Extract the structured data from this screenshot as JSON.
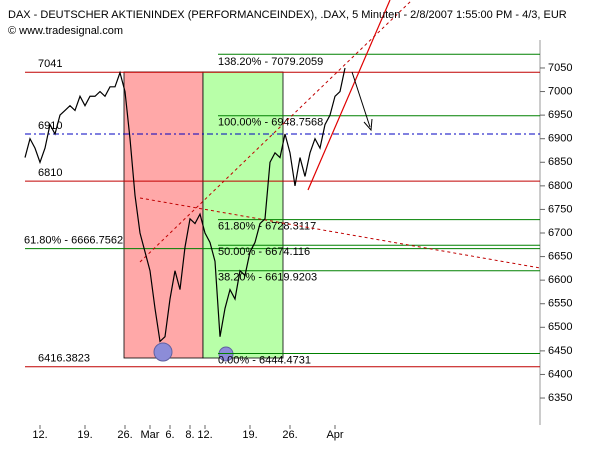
{
  "chart_data": {
    "type": "line",
    "title": "DAX  - DEUTSCHER AKTIENINDEX (PERFORMANCEINDEX), .DAX, 5 Minuten - 2/8/2007 1:55:00 PM - 4/3, EUR",
    "subtitle": "© www.tradesignal.com",
    "categories": [
      null,
      null,
      null,
      "12.",
      null,
      null,
      null,
      null,
      null,
      null,
      null,
      null,
      "19.",
      null,
      null,
      null,
      null,
      null,
      null,
      null,
      "26.",
      null,
      null,
      null,
      null,
      "Mar",
      null,
      null,
      null,
      "6.",
      null,
      null,
      null,
      "8.",
      null,
      null,
      "12.",
      null,
      null,
      null,
      null,
      null,
      null,
      null,
      null,
      "19.",
      null,
      null,
      null,
      null,
      null,
      null,
      null,
      "26.",
      null,
      null,
      null,
      null,
      null,
      null,
      null,
      null,
      "Apr",
      null,
      null
    ],
    "series": [
      {
        "name": "DAX",
        "color": "#000000",
        "values": [
          6860,
          6900,
          6880,
          6850,
          6880,
          6930,
          6910,
          6950,
          6960,
          6970,
          6960,
          6990,
          6970,
          6990,
          6990,
          7000,
          6990,
          7010,
          7010,
          7040,
          7000,
          6900,
          6780,
          6700,
          6660,
          6620,
          6540,
          6470,
          6480,
          6560,
          6620,
          6580,
          6670,
          6730,
          6720,
          6740,
          6700,
          6680,
          6640,
          6480,
          6540,
          6580,
          6560,
          6620,
          6610,
          6660,
          6680,
          6720,
          6730,
          6850,
          6870,
          6860,
          6910,
          6870,
          6800,
          6860,
          6820,
          6870,
          6900,
          6880,
          6930,
          6950,
          6990,
          7000,
          7050
        ]
      }
    ],
    "levels": [
      {
        "label": "7041",
        "value": 7041,
        "color": "#c00000"
      },
      {
        "label": "6910",
        "value": 6910,
        "color": "#0000c0"
      },
      {
        "label": "6810",
        "value": 6810,
        "color": "#c00000"
      },
      {
        "label": "6416.3823",
        "value": 6416.3823,
        "color": "#c00000"
      },
      {
        "label": "61.80% - 6666.7562",
        "value": 6666.7562,
        "color": "#008000"
      }
    ],
    "fib_levels": [
      {
        "label": "138.20% - 7079.2059",
        "value": 7079.2059
      },
      {
        "label": "100.00% - 6948.7568",
        "value": 6948.7568
      },
      {
        "label": "61.80% - 6728.3117",
        "value": 6728.3117
      },
      {
        "label": "50.00% - 6674.116",
        "value": 6674.116
      },
      {
        "label": "38.20% - 6619.9203",
        "value": 6619.9203
      },
      {
        "label": "0.00% - 6444.4731",
        "value": 6444.4731
      }
    ],
    "fib_color": "#008000",
    "ylim": [
      6300,
      7100
    ],
    "yticks": [
      6350,
      6400,
      6450,
      6500,
      6550,
      6600,
      6650,
      6700,
      6750,
      6800,
      6850,
      6900,
      6950,
      7000,
      7050
    ]
  }
}
